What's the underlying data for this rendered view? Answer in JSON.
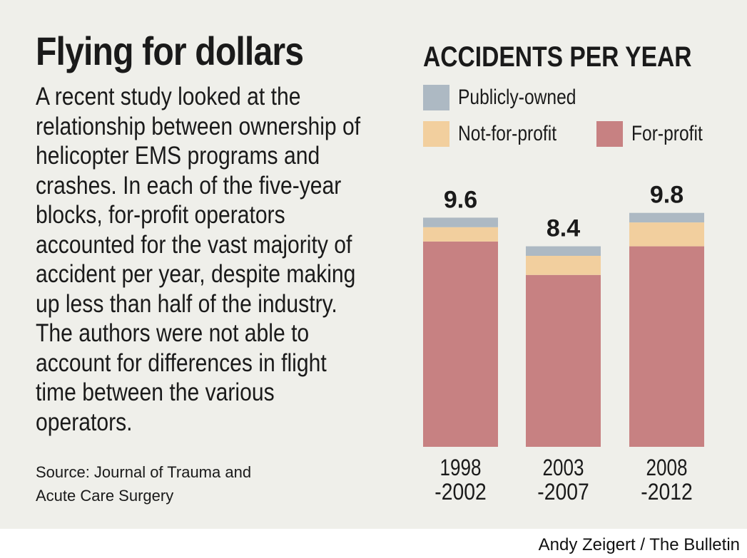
{
  "headline": "Flying for dollars",
  "body_lines": [
    "A recent study looked at the",
    "relationship between ownership of",
    "helicopter EMS programs and",
    "crashes. In each of the five-year",
    "blocks, for-profit operators",
    "accounted for the vast majority of",
    "accident per year, despite making",
    "up less than half of the industry.",
    "The authors were not able to",
    "account for differences in flight",
    "time between the various",
    "operators."
  ],
  "source_lines": [
    "Source: Journal of Trauma and",
    "Acute Care Surgery"
  ],
  "credit": "Andy Zeigert / The Bulletin",
  "colors": {
    "background": "#efefea",
    "publicly_owned": "#adb9c3",
    "not_for_profit": "#f2cf9e",
    "for_profit": "#c78182"
  },
  "chart_data": {
    "type": "bar",
    "stacked": true,
    "title": "ACCIDENTS PER YEAR",
    "categories": [
      [
        "1998",
        "-2002"
      ],
      [
        "2003",
        "-2007"
      ],
      [
        "2008",
        "-2012"
      ]
    ],
    "totals": [
      9.6,
      8.4,
      9.8
    ],
    "series": [
      {
        "name": "For-profit",
        "color": "#c78182",
        "values": [
          8.6,
          7.2,
          8.4
        ]
      },
      {
        "name": "Not-for-profit",
        "color": "#f2cf9e",
        "values": [
          0.6,
          0.8,
          1.0
        ]
      },
      {
        "name": "Publicly-owned",
        "color": "#adb9c3",
        "values": [
          0.4,
          0.4,
          0.4
        ]
      }
    ],
    "legend": [
      {
        "name": "Publicly-owned",
        "color": "#adb9c3"
      },
      {
        "name": "Not-for-profit",
        "color": "#f2cf9e"
      },
      {
        "name": "For-profit",
        "color": "#c78182"
      }
    ],
    "ylim": [
      0,
      9.8
    ],
    "grid": false,
    "legend_position": "top"
  }
}
